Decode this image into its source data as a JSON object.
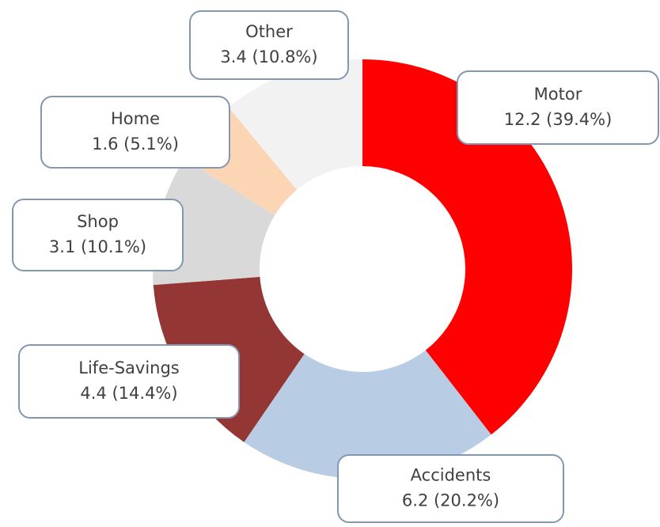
{
  "chart_data": {
    "type": "donut",
    "categories": [
      "Motor",
      "Accidents",
      "Life-Savings",
      "Shop",
      "Home",
      "Other"
    ],
    "values": [
      12.2,
      6.2,
      4.4,
      3.1,
      1.6,
      3.4
    ],
    "value_labels": [
      "12.2 (39.4%)",
      "6.2 (20.2%)",
      "4.4 (14.4%)",
      "3.1 (10.1%)",
      "1.6 (5.1%)",
      "3.4 (10.8%)"
    ],
    "colors": [
      "#ff0000",
      "#b8cce4",
      "#943634",
      "#d9d9d9",
      "#fcd5b5",
      "#f2f2f2"
    ]
  }
}
